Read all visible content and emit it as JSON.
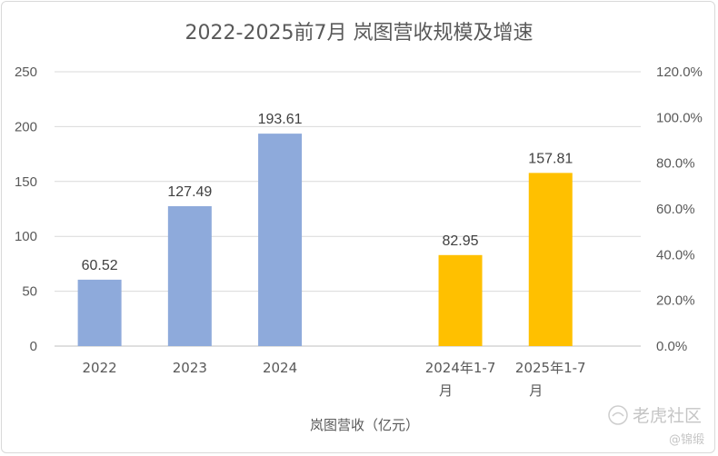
{
  "chart_data": {
    "type": "bar",
    "title": "2022-2025前7月 岚图营收规模及增速",
    "xlabel": "岚图营收（亿元）",
    "categories": [
      "2022",
      "2023",
      "2024",
      "",
      "2024年1-7月",
      "2025年1-7月"
    ],
    "category_lines": [
      [
        "2022"
      ],
      [
        "2023"
      ],
      [
        "2024"
      ],
      [
        ""
      ],
      [
        "2024年1-7",
        "月"
      ],
      [
        "2025年1-7",
        "月"
      ]
    ],
    "values": [
      60.52,
      127.49,
      193.61,
      null,
      82.95,
      157.81
    ],
    "value_labels": [
      "60.52",
      "127.49",
      "193.61",
      "",
      "82.95",
      "157.81"
    ],
    "bar_colors": [
      "#8eaadb",
      "#8eaadb",
      "#8eaadb",
      "#8eaadb",
      "#ffc000",
      "#ffc000"
    ],
    "ylim": [
      0,
      250
    ],
    "yticks": [
      "0",
      "50",
      "100",
      "150",
      "200",
      "250"
    ],
    "y2lim": [
      0,
      120
    ],
    "y2ticks": [
      "0.0%",
      "20.0%",
      "40.0%",
      "60.0%",
      "80.0%",
      "100.0%",
      "120.0%"
    ],
    "grid": true,
    "legend": "none"
  },
  "watermark": {
    "brand": "老虎社区",
    "handle": "@锦缎"
  }
}
